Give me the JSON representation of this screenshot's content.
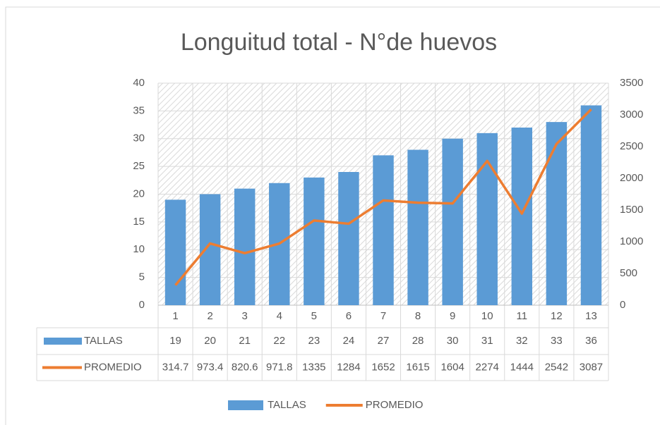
{
  "chart_data": {
    "type": "bar",
    "title": "Longuitud total - N°de huevos",
    "categories": [
      "1",
      "2",
      "3",
      "4",
      "5",
      "6",
      "7",
      "8",
      "9",
      "10",
      "11",
      "12",
      "13"
    ],
    "series": [
      {
        "name": "TALLAS",
        "type": "bar",
        "color": "#5b9bd5",
        "axis": "y",
        "values": [
          19,
          20,
          21,
          22,
          23,
          24,
          27,
          28,
          30,
          31,
          32,
          33,
          36
        ]
      },
      {
        "name": "PROMEDIO",
        "type": "line",
        "color": "#ed7d31",
        "axis": "y2",
        "values": [
          314.7,
          973.4,
          820.6,
          971.8,
          1335,
          1284,
          1652,
          1615,
          1604,
          2274,
          1444,
          2542,
          3087
        ]
      }
    ],
    "ylim": [
      0,
      40
    ],
    "yticks": [
      0,
      5,
      10,
      15,
      20,
      25,
      30,
      35,
      40
    ],
    "y2lim": [
      0,
      3500
    ],
    "y2ticks": [
      0,
      500,
      1000,
      1500,
      2000,
      2500,
      3000,
      3500
    ],
    "grid": true,
    "legend": "bottom",
    "data_table": true
  }
}
